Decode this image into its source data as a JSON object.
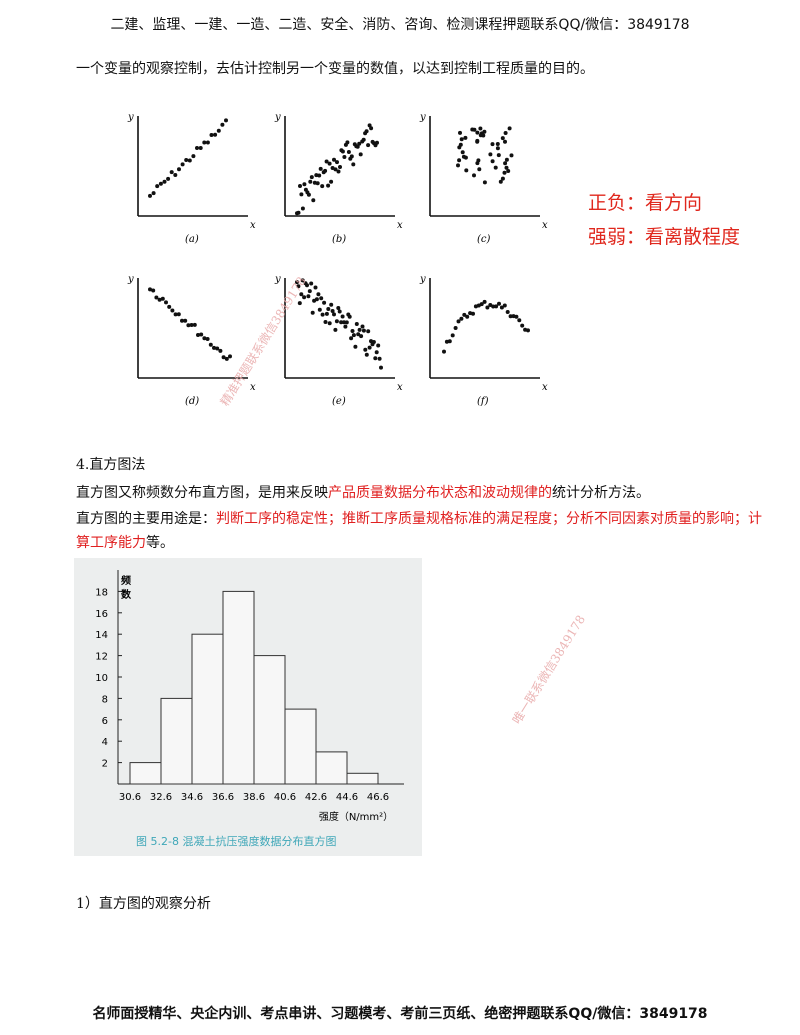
{
  "header": {
    "text": "二建、监理、一建、一造、二造、安全、消防、咨询、检测课程押题联系QQ/微信：3849178"
  },
  "intro_line": "一个变量的观察控制，去估计控制另一个变量的数值，以达到控制工程质量的目的。",
  "scatter": {
    "panels": [
      {
        "id": "a",
        "caption": "(a)"
      },
      {
        "id": "b",
        "caption": "(b)"
      },
      {
        "id": "c",
        "caption": "(c)"
      },
      {
        "id": "d",
        "caption": "(d)"
      },
      {
        "id": "e",
        "caption": "(e)"
      },
      {
        "id": "f",
        "caption": "(f)"
      }
    ],
    "axis_x": "x",
    "axis_y": "y"
  },
  "notes": {
    "line1": "正负：看方向",
    "line2": "强弱：看离散程度"
  },
  "section": {
    "heading": "4.直方图法",
    "def_prefix": "直方图又称频数分布直方图，是用来反映",
    "def_red": "产品质量数据分布状态和波动规律的",
    "def_suffix": "统计分析方法。",
    "use_prefix": "直方图的主要用途是：",
    "use_red_line1": "判断工序的稳定性；推断工序质量规格标准的满足程度；分析不同因素对质量的影响；计",
    "use_red_line2": "算工序能力",
    "use_suffix": "等。"
  },
  "chart_data": {
    "type": "bar",
    "title": "图 5.2-8   混凝土抗压强度数据分布直方图",
    "xlabel": "强度（N/mm²）",
    "ylabel": "频数",
    "x_edges": [
      30.6,
      32.6,
      34.6,
      36.6,
      38.6,
      40.6,
      42.6,
      44.6,
      46.6
    ],
    "categories": [
      "30.6-32.6",
      "32.6-34.6",
      "34.6-36.6",
      "36.6-38.6",
      "38.6-40.6",
      "40.6-42.6",
      "42.6-44.6",
      "44.6-46.6"
    ],
    "values": [
      2,
      8,
      14,
      18,
      12,
      7,
      3,
      1
    ],
    "yticks": [
      2,
      4,
      6,
      8,
      10,
      12,
      14,
      16,
      18
    ],
    "ylim": [
      0,
      20
    ],
    "grid": false
  },
  "subheading": "1）直方图的观察分析",
  "footer": {
    "text": "名师面授精华、央企内训、考点串讲、习题模考、考前三页纸、绝密押题联系QQ/微信：3849178"
  },
  "watermarks": {
    "w1": "精准押题联系微信3849178",
    "w2": "唯一联系微信3849178"
  }
}
